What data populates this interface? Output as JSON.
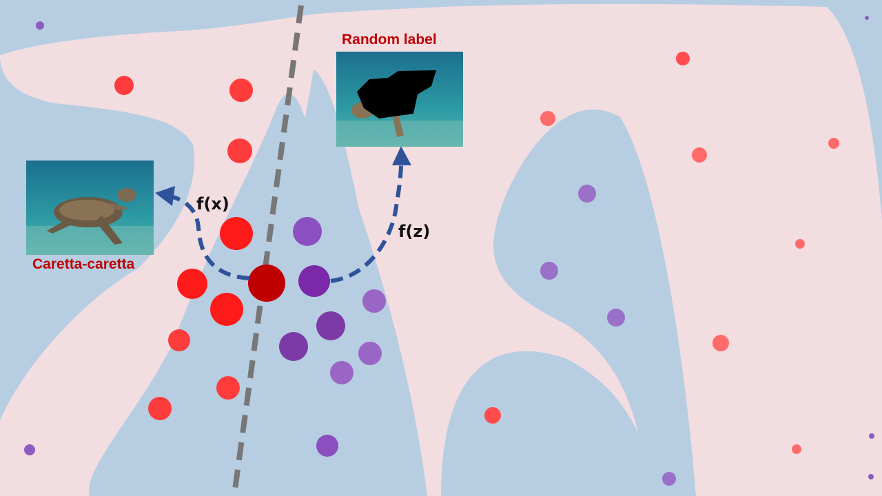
{
  "labels": {
    "random_label": "Random label",
    "caretta_label": "Caretta-caretta",
    "fx": "f(x)",
    "fz": "f(z)"
  },
  "colors": {
    "background_blue": "#b7cde2",
    "region_pink": "#f2dde0",
    "red_point": "#ff2a2a",
    "purple_point": "#7b3aa6",
    "boundary": "#777777",
    "arrow": "#2f539a",
    "label_text": "#c00000"
  },
  "images": {
    "caretta": "sea-turtle-photo",
    "random": "occluded-sea-turtle-photo"
  }
}
